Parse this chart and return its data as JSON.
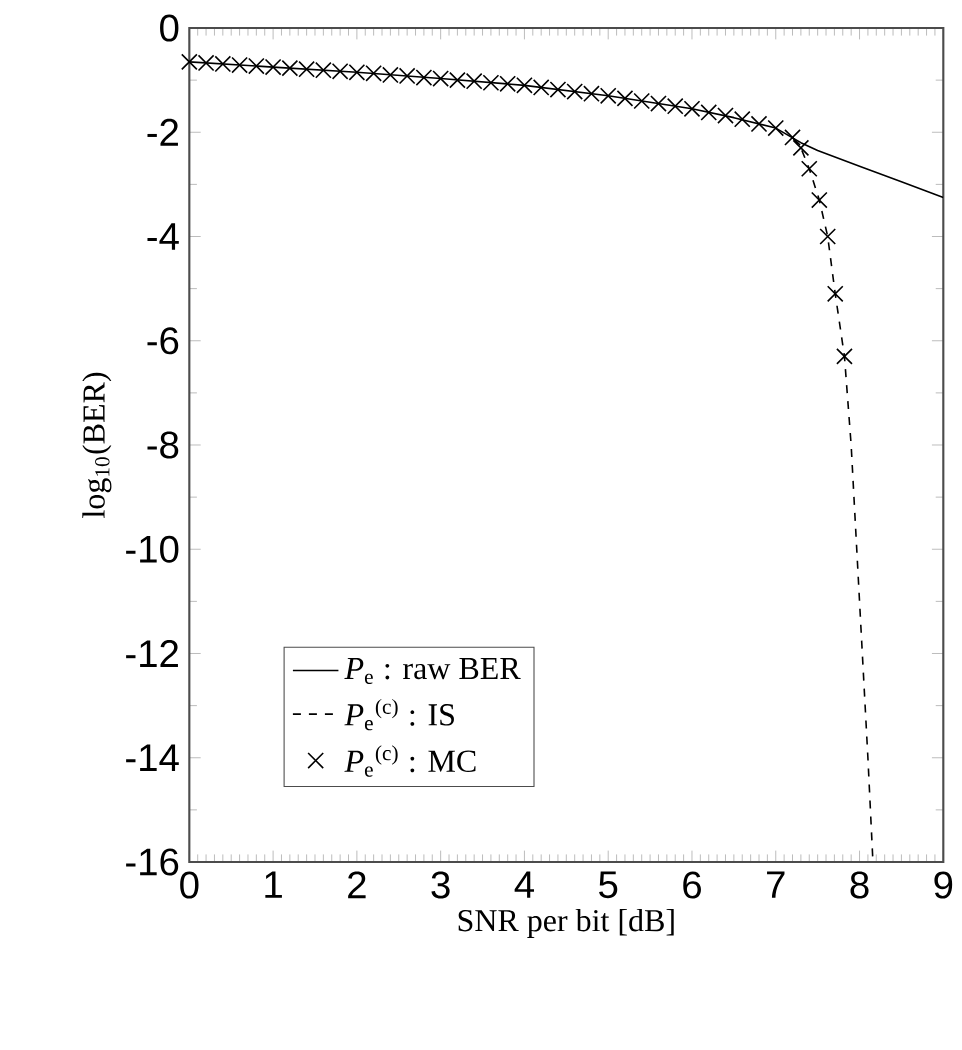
{
  "chart_data": {
    "type": "line",
    "xlabel": "SNR per bit [dB]",
    "ylabel": "log$_{10}$(BER)",
    "xlim": [
      0,
      9
    ],
    "ylim": [
      -16,
      0
    ],
    "xticks": [
      0,
      1,
      2,
      3,
      4,
      5,
      6,
      7,
      8,
      9
    ],
    "yticks": [
      -16,
      -14,
      -12,
      -10,
      -8,
      -6,
      -4,
      -2,
      0
    ],
    "legend": "bottom left",
    "grid": false,
    "series": [
      {
        "name": "*P*$_{e}$ : raw BER",
        "color": "#000000",
        "line_style": "solid",
        "marker": "none",
        "x": [
          0,
          1,
          2,
          3,
          4,
          5,
          6,
          6.5,
          7,
          7.3,
          7.5,
          8,
          8.5,
          9
        ],
        "values": [
          -0.65,
          -0.75,
          -0.85,
          -0.97,
          -1.1,
          -1.3,
          -1.55,
          -1.72,
          -1.92,
          -2.2,
          -2.35,
          -2.65,
          -2.95,
          -3.25
        ]
      },
      {
        "name": "*P*$_{e}$$^{(c)}$ : IS",
        "color": "#000000",
        "line_style": "dashed",
        "marker": "none",
        "x": [
          7.2,
          7.3,
          7.4,
          7.52,
          7.62,
          7.71,
          7.82,
          7.9,
          8.0,
          8.1,
          8.16
        ],
        "values": [
          -2.1,
          -2.3,
          -2.7,
          -3.3,
          -4.0,
          -5.1,
          -6.3,
          -8,
          -11,
          -14,
          -16
        ]
      },
      {
        "name": "*P*$_{e}$$^{(c)}$ : MC",
        "color": "#000000",
        "type": "scatter",
        "marker": "cross",
        "x": [
          0,
          0.2,
          0.4,
          0.6,
          0.8,
          1,
          1.2,
          1.4,
          1.6,
          1.8,
          2,
          2.2,
          2.4,
          2.6,
          2.8,
          3,
          3.2,
          3.4,
          3.6,
          3.8,
          4,
          4.2,
          4.4,
          4.6,
          4.8,
          5,
          5.2,
          5.4,
          5.6,
          5.8,
          6,
          6.2,
          6.4,
          6.6,
          6.8,
          7,
          7.2,
          7.3,
          7.4,
          7.52,
          7.62,
          7.71,
          7.82
        ],
        "values": [
          -0.65,
          -0.67,
          -0.69,
          -0.71,
          -0.73,
          -0.75,
          -0.77,
          -0.79,
          -0.81,
          -0.83,
          -0.85,
          -0.87,
          -0.9,
          -0.92,
          -0.95,
          -0.97,
          -1.0,
          -1.02,
          -1.05,
          -1.07,
          -1.1,
          -1.14,
          -1.18,
          -1.22,
          -1.26,
          -1.3,
          -1.35,
          -1.4,
          -1.45,
          -1.5,
          -1.55,
          -1.62,
          -1.68,
          -1.75,
          -1.84,
          -1.92,
          -2.1,
          -2.3,
          -2.7,
          -3.3,
          -4.0,
          -5.1,
          -6.3
        ]
      }
    ]
  }
}
